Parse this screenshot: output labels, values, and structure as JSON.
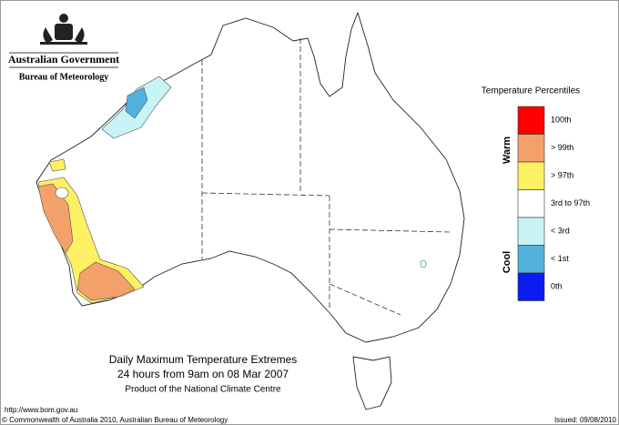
{
  "header": {
    "government": "Australian Government",
    "bureau": "Bureau of Meteorology"
  },
  "legend": {
    "title": "Temperature Percentiles",
    "warm_label": "Warm",
    "cool_label": "Cool",
    "items": [
      {
        "label": "100th",
        "color": "#ff0000"
      },
      {
        "label": "> 99th",
        "color": "#f4a06a"
      },
      {
        "label": "> 97th",
        "color": "#fdf062"
      },
      {
        "label": "3rd to 97th",
        "color": "#ffffff"
      },
      {
        "label": "< 3rd",
        "color": "#c8f4f6"
      },
      {
        "label": "< 1st",
        "color": "#52b2dc"
      },
      {
        "label": "0th",
        "color": "#0a1cf0"
      }
    ]
  },
  "title": {
    "lines": [
      "Daily Maximum Temperature Extremes",
      "24 hours from 9am on 08 Mar 2007",
      "Product of the National Climate Centre"
    ]
  },
  "footer": {
    "url": "http://www.bom.gov.au",
    "copyright": "© Commonwealth of Australia 2010, Australian Bureau of Meteorology",
    "issued": "Issued: 09/08/2010"
  }
}
